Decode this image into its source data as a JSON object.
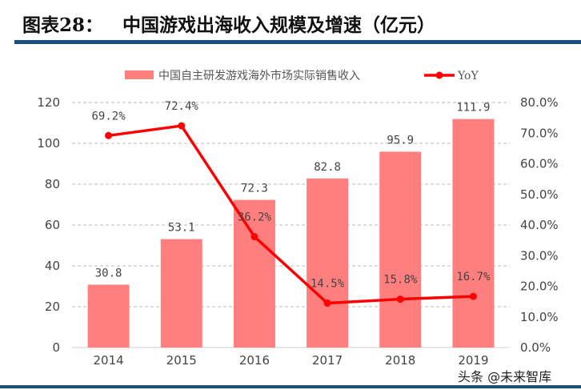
{
  "title": "图表28：   中国游戏出海收入规模及增速（亿元）",
  "watermark": "头条 @未来智库",
  "chart_data": {
    "type": "bar+line",
    "categories": [
      "2014",
      "2015",
      "2016",
      "2017",
      "2018",
      "2019"
    ],
    "series": [
      {
        "name": "中国自主研发游戏海外市场实际销售收入",
        "type": "bar",
        "axis": "left",
        "color": "#ff7f7f",
        "values": [
          30.8,
          53.1,
          72.3,
          82.8,
          95.9,
          111.9
        ],
        "labels": [
          "30.8",
          "53.1",
          "72.3",
          "82.8",
          "95.9",
          "111.9"
        ]
      },
      {
        "name": "YoY",
        "type": "line",
        "axis": "right",
        "color": "#ff0000",
        "values": [
          69.2,
          72.4,
          36.2,
          14.5,
          15.8,
          16.7
        ],
        "labels": [
          "69.2%",
          "72.4%",
          "36.2%",
          "14.5%",
          "15.8%",
          "16.7%"
        ]
      }
    ],
    "y_left": {
      "range": [
        0,
        120
      ],
      "ticks": [
        "0",
        "20",
        "40",
        "60",
        "80",
        "100",
        "120"
      ]
    },
    "y_right": {
      "range": [
        0,
        80
      ],
      "ticks": [
        "0.0%",
        "10.0%",
        "20.0%",
        "30.0%",
        "40.0%",
        "50.0%",
        "60.0%",
        "70.0%",
        "80.0%"
      ]
    },
    "grid": "horizontal dashed",
    "legend_placement": "top"
  }
}
